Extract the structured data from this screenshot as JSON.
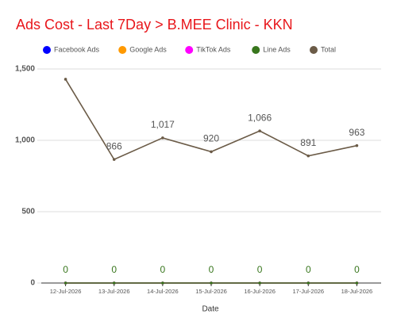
{
  "chart_data": {
    "type": "line",
    "title": "Ads Cost - Last 7Day > B.MEE Clinic - KKN",
    "x_label": "Date",
    "categories": [
      "12-Jul-2026",
      "13-Jul-2026",
      "14-Jul-2026",
      "15-Jul-2026",
      "16-Jul-2026",
      "17-Jul-2026",
      "18-Jul-2026"
    ],
    "series": [
      {
        "name": "Facebook Ads",
        "color": "#0000ff",
        "values": [
          0,
          0,
          0,
          0,
          0,
          0,
          0
        ]
      },
      {
        "name": "Google Ads",
        "color": "#ff9900",
        "values": [
          0,
          0,
          0,
          0,
          0,
          0,
          0
        ]
      },
      {
        "name": "TikTok Ads",
        "color": "#ff00ff",
        "values": [
          0,
          0,
          0,
          0,
          0,
          0,
          0
        ]
      },
      {
        "name": "Line Ads",
        "color": "#38761d",
        "values": [
          0,
          0,
          0,
          0,
          0,
          0,
          0
        ],
        "show_labels": true
      },
      {
        "name": "Total",
        "color": "#6b5b47",
        "values": [
          1428,
          866,
          1017,
          920,
          1066,
          891,
          963
        ],
        "value_labels": [
          null,
          "866",
          "1,017",
          "920",
          "1,066",
          "891",
          "963"
        ],
        "show_labels": true
      }
    ],
    "ylim": [
      0,
      1500
    ],
    "yticks": [
      0,
      500,
      {
        "value": 1000,
        "label": "1,000"
      },
      {
        "value": 1500,
        "label": "1,500"
      }
    ],
    "grid": true,
    "legend": "top"
  }
}
